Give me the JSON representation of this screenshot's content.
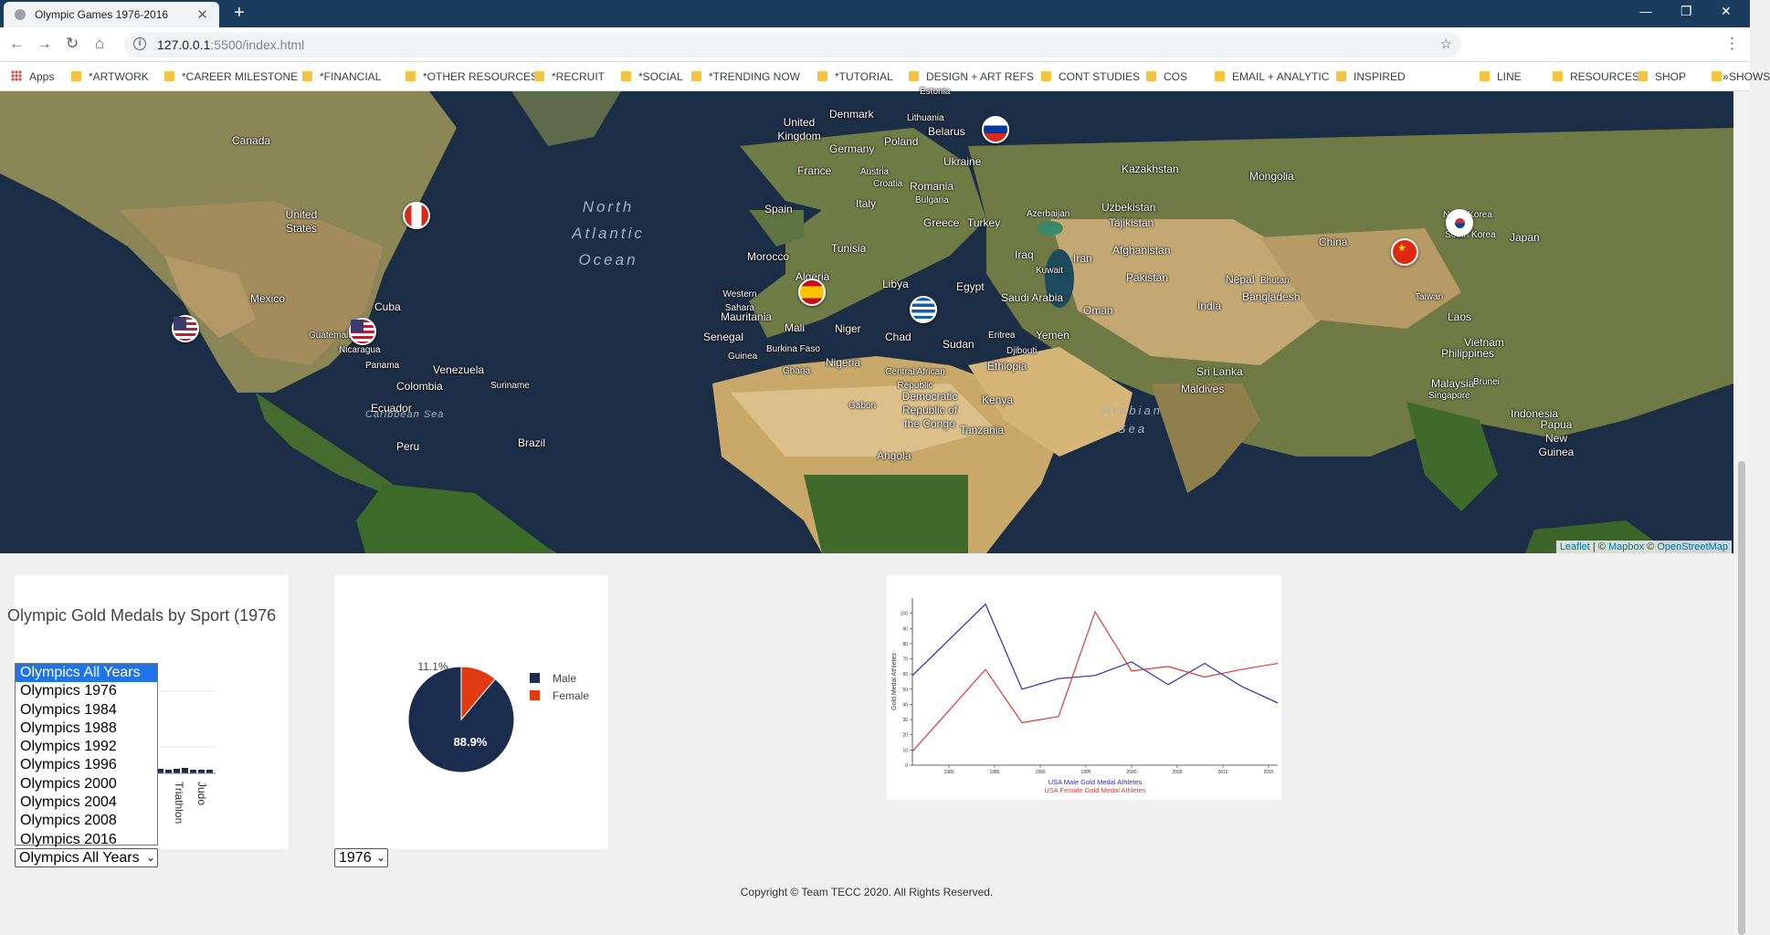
{
  "browser": {
    "tab_title": "Olympic Games 1976-2016",
    "url_host": "127.0.0.1",
    "url_rest": ":5500/index.html",
    "bookmarks": [
      "Apps",
      "*ARTWORK",
      "*CAREER MILESTONE",
      "*FINANCIAL",
      "*OTHER RESOURCES",
      "*RECRUIT",
      "*SOCIAL",
      "*TRENDING NOW",
      "*TUTORIAL",
      "DESIGN + ART REFS",
      "CONT STUDIES",
      "COS",
      "EMAIL + ANALYTIC",
      "INSPIRED",
      "LINE",
      "RESOURCES",
      "SHOP",
      "SHOWS"
    ]
  },
  "map": {
    "labels": [
      {
        "text": "Canada"
      },
      {
        "text": "United States"
      },
      {
        "text": "Mexico"
      },
      {
        "text": "Cuba"
      },
      {
        "text": "Guatemala"
      },
      {
        "text": "Nicaragua"
      },
      {
        "text": "Panama"
      },
      {
        "text": "Venezuela"
      },
      {
        "text": "Colombia"
      },
      {
        "text": "Suriname"
      },
      {
        "text": "Ecuador"
      },
      {
        "text": "Peru"
      },
      {
        "text": "Brazil"
      },
      {
        "text": "Estonia"
      },
      {
        "text": "Denmark"
      },
      {
        "text": "Lithuania"
      },
      {
        "text": "United Kingdom"
      },
      {
        "text": "Belarus"
      },
      {
        "text": "Poland"
      },
      {
        "text": "Germany"
      },
      {
        "text": "Ukraine"
      },
      {
        "text": "France"
      },
      {
        "text": "Austria"
      },
      {
        "text": "Croatia"
      },
      {
        "text": "Romania"
      },
      {
        "text": "Bulgaria"
      },
      {
        "text": "Italy"
      },
      {
        "text": "Spain"
      },
      {
        "text": "Greece"
      },
      {
        "text": "Turkey"
      },
      {
        "text": "Kazakhstan"
      },
      {
        "text": "Mongolia"
      },
      {
        "text": "Uzbekistan"
      },
      {
        "text": "Azerbaijan"
      },
      {
        "text": "Tajikistan"
      },
      {
        "text": "Morocco"
      },
      {
        "text": "Tunisia"
      },
      {
        "text": "Algeria"
      },
      {
        "text": "Libya"
      },
      {
        "text": "Egypt"
      },
      {
        "text": "Iraq"
      },
      {
        "text": "Iran"
      },
      {
        "text": "Kuwait"
      },
      {
        "text": "Afghanistan"
      },
      {
        "text": "Pakistan"
      },
      {
        "text": "Western Sahara"
      },
      {
        "text": "Mauritania"
      },
      {
        "text": "Mali"
      },
      {
        "text": "Niger"
      },
      {
        "text": "Chad"
      },
      {
        "text": "Sudan"
      },
      {
        "text": "Saudi Arabia"
      },
      {
        "text": "Oman"
      },
      {
        "text": "Yemen"
      },
      {
        "text": "Eritrea"
      },
      {
        "text": "Djibouti"
      },
      {
        "text": "Senegal"
      },
      {
        "text": "Guinea"
      },
      {
        "text": "Burkina Faso"
      },
      {
        "text": "Ghana"
      },
      {
        "text": "Nigeria"
      },
      {
        "text": "Central African Republic"
      },
      {
        "text": "Ethiopia"
      },
      {
        "text": "Gabon"
      },
      {
        "text": "Democratic Republic of the Congo"
      },
      {
        "text": "Kenya"
      },
      {
        "text": "Tanzania"
      },
      {
        "text": "Angola"
      },
      {
        "text": "India"
      },
      {
        "text": "Nepal"
      },
      {
        "text": "Bhutan"
      },
      {
        "text": "Bangladesh"
      },
      {
        "text": "China"
      },
      {
        "text": "North Korea"
      },
      {
        "text": "South Korea"
      },
      {
        "text": "Japan"
      },
      {
        "text": "Taiwan"
      },
      {
        "text": "Laos"
      },
      {
        "text": "Vietnam"
      },
      {
        "text": "Philippines"
      },
      {
        "text": "Sri Lanka"
      },
      {
        "text": "Maldives"
      },
      {
        "text": "Malaysia"
      },
      {
        "text": "Singapore"
      },
      {
        "text": "Brunei"
      },
      {
        "text": "Indonesia"
      },
      {
        "text": "Papua New Guinea"
      }
    ],
    "oceans": [
      "North Atlantic Ocean",
      "Caribbean Sea",
      "Arabian Sea"
    ],
    "markers": [
      {
        "name": "canada-flag-marker",
        "country": "Canada",
        "colors": [
          "#d52b1e",
          "#ffffff"
        ]
      },
      {
        "name": "usa-flag-marker-west",
        "country": "United States",
        "colors": [
          "#b22234",
          "#3c3b6e"
        ]
      },
      {
        "name": "usa-flag-marker-east",
        "country": "United States",
        "colors": [
          "#b22234",
          "#3c3b6e"
        ]
      },
      {
        "name": "spain-flag-marker",
        "country": "Spain",
        "colors": [
          "#c60b1e",
          "#ffc400"
        ]
      },
      {
        "name": "greece-flag-marker",
        "country": "Greece",
        "colors": [
          "#0d5eaf",
          "#ffffff"
        ]
      },
      {
        "name": "russia-flag-marker",
        "country": "Russia",
        "colors": [
          "#ffffff",
          "#0039a6",
          "#d52b1e"
        ]
      },
      {
        "name": "china-flag-marker",
        "country": "China",
        "colors": [
          "#de2910",
          "#ffde00"
        ]
      },
      {
        "name": "korea-flag-marker",
        "country": "South Korea",
        "colors": [
          "#ffffff",
          "#cd2e3a",
          "#0047a0"
        ]
      }
    ],
    "attribution": {
      "leaflet": "Leaflet",
      "sep": " | © ",
      "mapbox": "Mapbox",
      "sep2": " © ",
      "osm": "OpenStreetMap"
    }
  },
  "bar_panel": {
    "title": "Olympic Gold Medals by Sport (1976",
    "visible_ticks": [
      "Judo",
      "Triathlon"
    ],
    "dropdown": {
      "selected": "Olympics All Years",
      "options": [
        "Olympics All Years",
        "Olympics 1976",
        "Olympics 1984",
        "Olympics 1988",
        "Olympics 1992",
        "Olympics 1996",
        "Olympics 2000",
        "Olympics 2004",
        "Olympics 2008",
        "Olympics 2016"
      ]
    }
  },
  "pie_panel": {
    "year_select": "1976"
  },
  "colors": {
    "male": "#1b2d4f",
    "female": "#e03a12",
    "usa_male_line": "#2b2bb5",
    "usa_female_line": "#d93a3a"
  },
  "chart_data": [
    {
      "type": "pie",
      "labels": [
        "Male",
        "Female"
      ],
      "values": [
        88.9,
        11.1
      ],
      "data_labels": [
        "88.9%",
        "11.1%"
      ],
      "legend": "right"
    },
    {
      "type": "line",
      "x": [
        1976,
        1984,
        1988,
        1992,
        1996,
        2000,
        2004,
        2008,
        2012,
        2016
      ],
      "series": [
        {
          "name": "USA Male Gold Medal Athletes",
          "values": [
            59,
            106,
            50,
            57,
            59,
            68,
            53,
            67,
            52,
            41
          ]
        },
        {
          "name": "USA Female Gold Medal Athletes",
          "values": [
            9,
            63,
            28,
            32,
            101,
            62,
            65,
            58,
            63,
            67
          ]
        }
      ],
      "x_ticks": [
        "1980",
        "1985",
        "1990",
        "1995",
        "2000",
        "2005",
        "2010",
        "2015"
      ],
      "y_ticks": [
        "0",
        "10",
        "20",
        "30",
        "40",
        "50",
        "60",
        "70",
        "80",
        "90",
        "100"
      ],
      "ylabel": "Gold Medal Athletes",
      "xlim": [
        1976,
        2016
      ],
      "ylim": [
        0,
        110
      ],
      "legend": "bottom"
    }
  ],
  "footer": {
    "text": "Copyright © Team TECC 2020. All Rights Reserved."
  }
}
